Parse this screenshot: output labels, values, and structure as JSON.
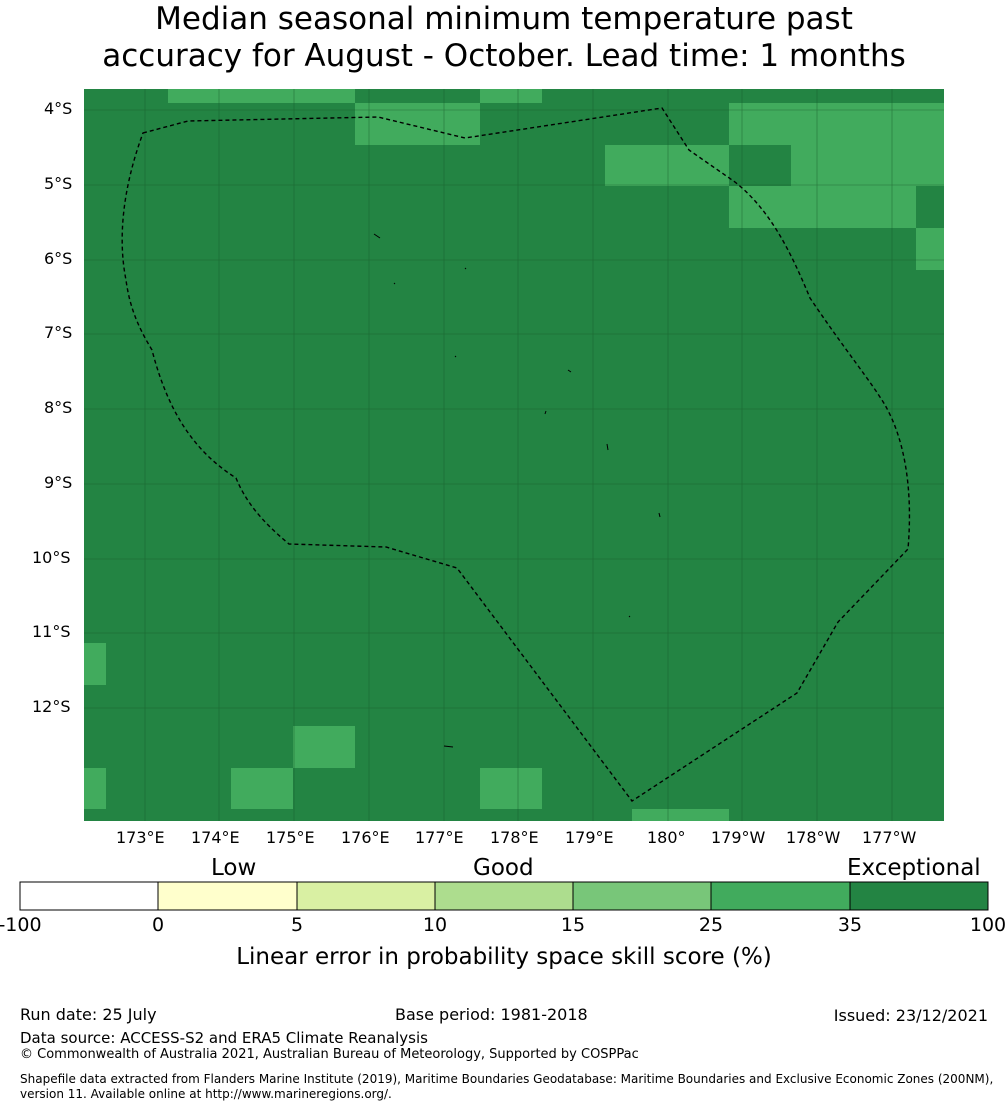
{
  "title_line1": "Median seasonal minimum temperature past",
  "title_line2": "accuracy for August - October. Lead time: 1 months",
  "map": {
    "latitude_labels": [
      "4°S",
      "5°S",
      "6°S",
      "7°S",
      "8°S",
      "9°S",
      "10°S",
      "11°S",
      "12°S"
    ],
    "longitude_labels": [
      "173°E",
      "174°E",
      "175°E",
      "176°E",
      "177°E",
      "178°E",
      "179°E",
      "180°",
      "179°W",
      "178°W",
      "177°W"
    ],
    "base_color": "#238443",
    "good_color": "#41ab5d",
    "boundary": "dashed black line marking the maritime zone"
  },
  "legend": {
    "categories": [
      "Low",
      "Good",
      "Exceptional"
    ],
    "ticks": [
      "-100",
      "0",
      "5",
      "10",
      "15",
      "25",
      "35",
      "100"
    ],
    "colors": [
      "#ffffff",
      "#ffffcc",
      "#d9f0a3",
      "#addd8e",
      "#78c679",
      "#41ab5d",
      "#238443"
    ],
    "axis_label": "Linear error in probability space skill score (%)"
  },
  "footer": {
    "run_date": "Run date: 25 July",
    "base_period": "Base period: 1981-2018",
    "issued": "Issued: 23/12/2021",
    "data_source": "Data source: ACCESS-S2 and ERA5 Climate Reanalysis",
    "copyright": "© Commonwealth of Australia 2021, Australian Bureau of Meteorology, Supported by COSPPac",
    "shapefile_line1": "Shapefile data extracted from Flanders Marine Institute (2019), Maritime Boundaries Geodatabase: Maritime Boundaries and Exclusive Economic Zones (200NM),",
    "shapefile_line2": "version 11. Available online at http://www.marineregions.org/."
  }
}
